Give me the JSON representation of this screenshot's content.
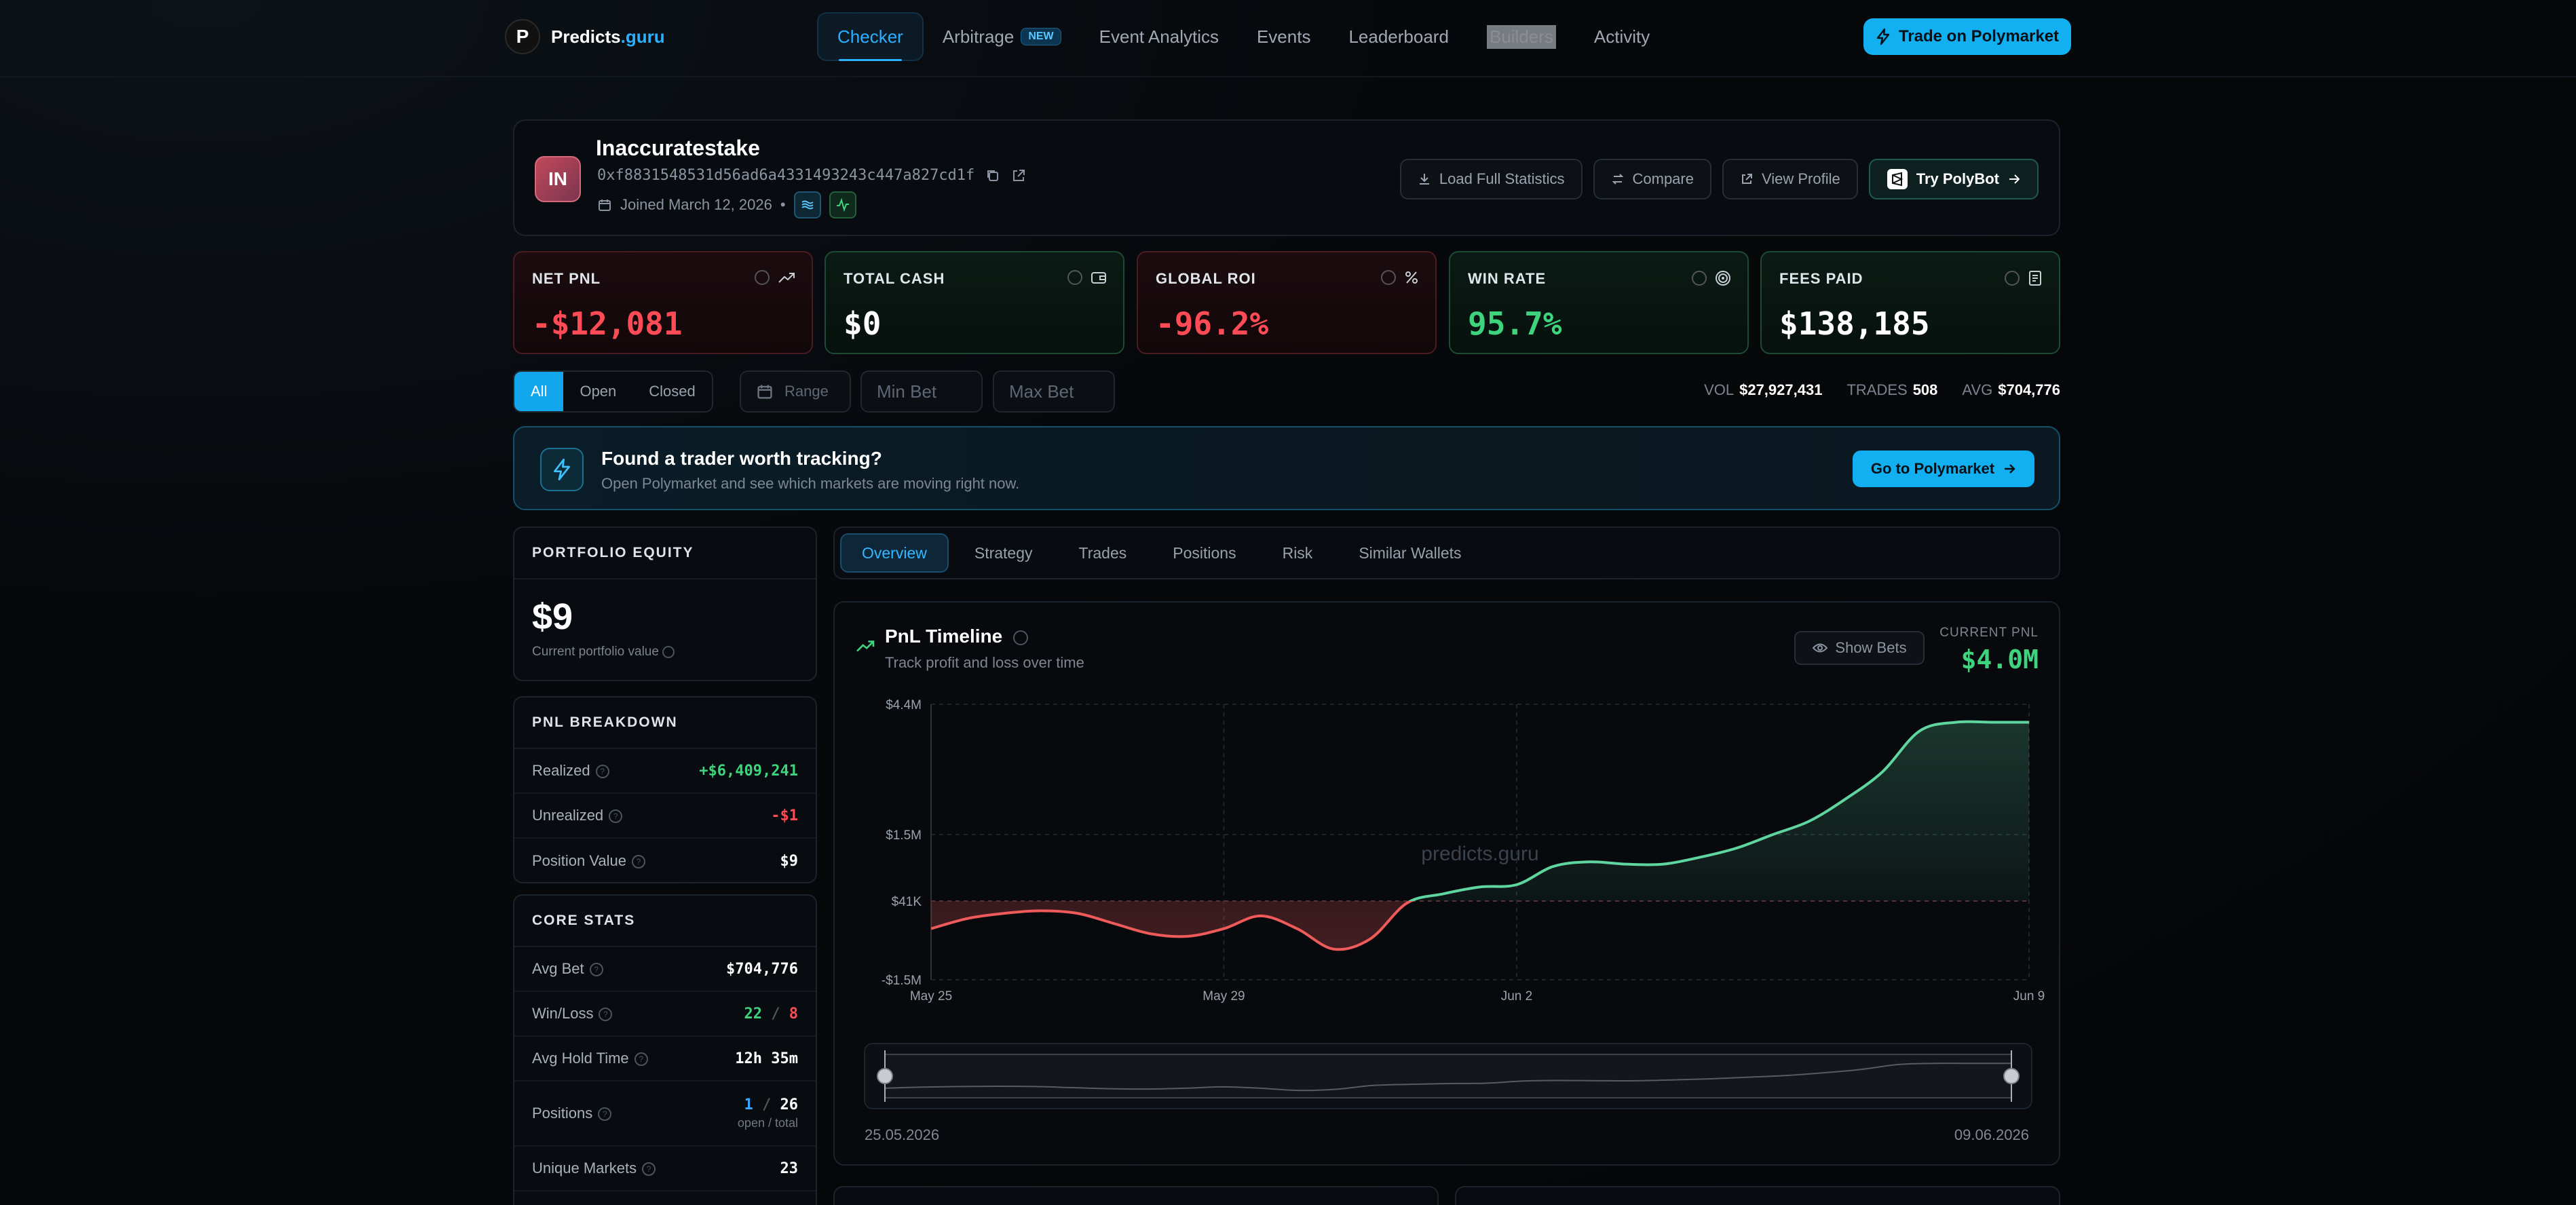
{
  "nav": {
    "logo_mark": "P",
    "logo_prefix": "Predicts",
    "logo_suffix": ".guru",
    "links": [
      {
        "label": "Checker",
        "active": true
      },
      {
        "label": "Arbitrage",
        "badge": "NEW"
      },
      {
        "label": "Event Analytics"
      },
      {
        "label": "Events"
      },
      {
        "label": "Leaderboard"
      },
      {
        "label": "Builders"
      },
      {
        "label": "Activity"
      }
    ],
    "cta": "Trade on Polymarket"
  },
  "profile": {
    "initials": "IN",
    "name": "Inaccuratestake",
    "address": "0xf8831548531d56ad6a4331493243c447a827cd1f",
    "joined": "Joined March 12, 2026",
    "separator": "•",
    "buttons": [
      "Load Full Statistics",
      "Compare",
      "View Profile",
      "Try PolyBot"
    ]
  },
  "stats": [
    {
      "label": "NET PNL",
      "value": "-$12,081",
      "tone": "red"
    },
    {
      "label": "TOTAL CASH",
      "value": "$0",
      "tone": "white"
    },
    {
      "label": "GLOBAL ROI",
      "value": "-96.2%",
      "tone": "red"
    },
    {
      "label": "WIN RATE",
      "value": "95.7%",
      "tone": "green"
    },
    {
      "label": "FEES PAID",
      "value": "$138,185",
      "tone": "white"
    }
  ],
  "filters": {
    "segments": [
      "All",
      "Open",
      "Closed"
    ],
    "range_placeholder": "Range",
    "min_bet_placeholder": "Min Bet",
    "max_bet_placeholder": "Max Bet",
    "vol_label": "VOL",
    "vol_value": "$27,927,431",
    "trades_label": "TRADES",
    "trades_value": "508",
    "avg_label": "AVG",
    "avg_value": "$704,776"
  },
  "banner": {
    "title": "Found a trader worth tracking?",
    "subtitle": "Open Polymarket and see which markets are moving right now.",
    "button": "Go to Polymarket"
  },
  "portfolio": {
    "title": "PORTFOLIO EQUITY",
    "value": "$9",
    "caption": "Current portfolio value"
  },
  "pnl_breakdown": {
    "title": "PNL BREAKDOWN",
    "rows": [
      {
        "label": "Realized",
        "value": "+$6,409,241"
      },
      {
        "label": "Unrealized",
        "value": "-$1"
      },
      {
        "label": "Position Value",
        "value": "$9"
      }
    ]
  },
  "core_stats": {
    "title": "CORE STATS",
    "avg_bet_label": "Avg Bet",
    "avg_bet": "$704,776",
    "winloss_label": "Win/Loss",
    "wins": "22",
    "slash": "/",
    "losses": "8",
    "hold_label": "Avg Hold Time",
    "hold": "12h 35m",
    "positions_label": "Positions",
    "pos_open": "1",
    "pos_total": "26",
    "pos_caption": "open / total",
    "unique_label": "Unique Markets",
    "unique": "23"
  },
  "tabs": [
    "Overview",
    "Strategy",
    "Trades",
    "Positions",
    "Risk",
    "Similar Wallets"
  ],
  "chart": {
    "title": "PnL Timeline",
    "subtitle": "Track profit and loss over time",
    "show_bets": "Show Bets",
    "current_label": "CURRENT PNL",
    "current_value": "$4.0M",
    "watermark": "predicts.guru",
    "range_start": "25.05.2026",
    "range_end": "09.06.2026"
  },
  "chart_data": {
    "type": "area",
    "yticks": [
      4400000,
      1500000,
      41000,
      -1500000
    ],
    "ytick_labels": [
      "$4.4M",
      "$1.5M",
      "$41K",
      "-$1.5M"
    ],
    "xticks": [
      0,
      4,
      8,
      15
    ],
    "xtick_labels": [
      "May 25",
      "May 29",
      "Jun 2",
      "Jun 9"
    ],
    "x_start": "2026-05-25",
    "x": [
      0,
      0.5,
      1,
      1.5,
      2,
      2.5,
      3,
      3.5,
      4,
      4.5,
      5,
      5.5,
      6,
      6.5,
      7,
      7.5,
      8,
      8.5,
      9,
      9.5,
      10,
      10.5,
      11,
      11.5,
      12,
      12.5,
      13,
      13.5,
      14,
      14.5,
      15
    ],
    "y": [
      -500000,
      -300000,
      -200000,
      -150000,
      -200000,
      -400000,
      -600000,
      -650000,
      -500000,
      -250000,
      -500000,
      -900000,
      -700000,
      0,
      200000,
      350000,
      400000,
      800000,
      900000,
      850000,
      850000,
      1000000,
      1200000,
      1500000,
      1800000,
      2300000,
      2900000,
      3800000,
      4000000,
      4000000,
      4000000
    ],
    "zero_line": 41000,
    "ylim": [
      -1500000,
      4400000
    ],
    "xlim": [
      0,
      15
    ],
    "colors": {
      "positive": "#5fd6a0",
      "negative": "#ef5a5a"
    }
  }
}
